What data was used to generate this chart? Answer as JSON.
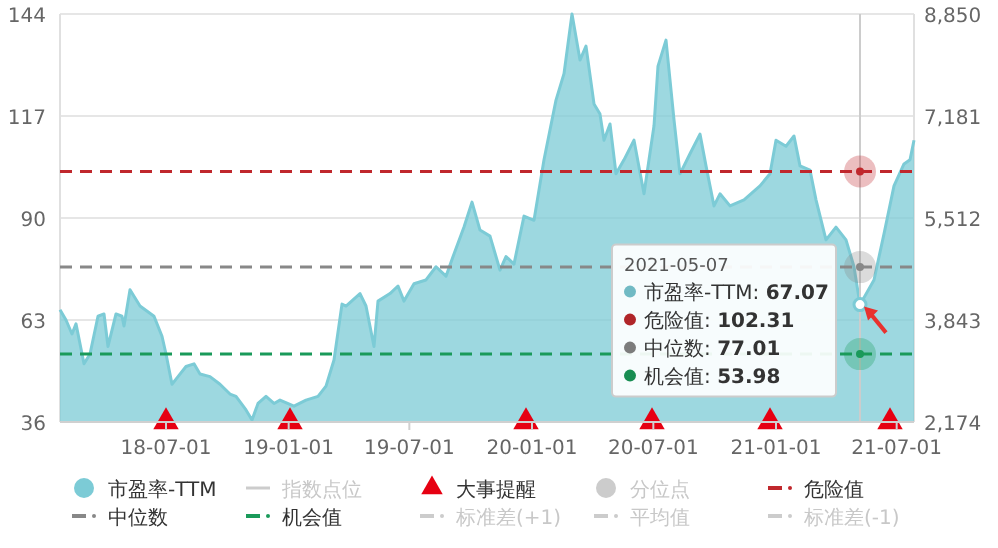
{
  "chart_data": {
    "type": "area",
    "xlim": [
      "2018-01-23",
      "2021-07-27"
    ],
    "xticks": [
      {
        "value": "2018-07-01",
        "label": "18-07-01"
      },
      {
        "value": "2019-01-01",
        "label": "19-01-01"
      },
      {
        "value": "2019-07-01",
        "label": "19-07-01"
      },
      {
        "value": "2020-01-01",
        "label": "20-01-01"
      },
      {
        "value": "2020-07-01",
        "label": "20-07-01"
      },
      {
        "value": "2021-01-01",
        "label": "21-01-01"
      },
      {
        "value": "2021-07-01",
        "label": "21-07-01"
      }
    ],
    "ylim": [
      36,
      144
    ],
    "yticks": [
      36,
      63,
      90,
      117,
      144
    ],
    "y2lim": [
      2174,
      8850
    ],
    "y2ticks": [
      {
        "value": 2174,
        "label": "2,174"
      },
      {
        "value": 3843,
        "label": "3,843"
      },
      {
        "value": 5512,
        "label": "5,512"
      },
      {
        "value": 7181,
        "label": "7,181"
      },
      {
        "value": 8850,
        "label": "8,850"
      }
    ],
    "grid": "y",
    "legend": "bottom",
    "series": [
      {
        "name": "市盈率-TTM",
        "color": "#7ccbd6",
        "x": [
          "2018-01-23",
          "2018-02-01",
          "2018-02-10",
          "2018-02-16",
          "2018-02-28",
          "2018-03-09",
          "2018-03-21",
          "2018-03-30",
          "2018-04-05",
          "2018-04-17",
          "2018-04-26",
          "2018-04-29",
          "2018-05-08",
          "2018-05-23",
          "2018-06-13",
          "2018-06-25",
          "2018-07-01",
          "2018-07-10",
          "2018-07-19",
          "2018-07-31",
          "2018-08-12",
          "2018-08-21",
          "2018-09-05",
          "2018-09-20",
          "2018-10-05",
          "2018-10-14",
          "2018-10-29",
          "2018-11-07",
          "2018-11-16",
          "2018-11-28",
          "2018-12-10",
          "2018-12-19",
          "2019-01-09",
          "2019-01-27",
          "2019-02-14",
          "2019-02-26",
          "2019-03-10",
          "2019-03-22",
          "2019-03-28",
          "2019-04-18",
          "2019-04-27",
          "2019-05-09",
          "2019-05-15",
          "2019-06-02",
          "2019-06-14",
          "2019-06-23",
          "2019-07-08",
          "2019-07-26",
          "2019-08-10",
          "2019-08-25",
          "2019-09-06",
          "2019-09-21",
          "2019-10-03",
          "2019-10-15",
          "2019-10-30",
          "2019-11-14",
          "2019-11-23",
          "2019-12-05",
          "2019-12-20",
          "2020-01-04",
          "2020-01-19",
          "2020-02-06",
          "2020-02-18",
          "2020-03-01",
          "2020-03-13",
          "2020-03-22",
          "2020-04-03",
          "2020-04-12",
          "2020-04-18",
          "2020-04-27",
          "2020-05-06",
          "2020-05-18",
          "2020-06-02",
          "2020-06-17",
          "2020-07-02",
          "2020-07-08",
          "2020-07-20",
          "2020-08-01",
          "2020-08-10",
          "2020-08-25",
          "2020-09-09",
          "2020-09-18",
          "2020-09-30",
          "2020-10-09",
          "2020-10-24",
          "2020-11-14",
          "2020-12-08",
          "2020-12-23",
          "2021-01-01",
          "2021-01-16",
          "2021-01-28",
          "2021-02-06",
          "2021-02-21",
          "2021-03-02",
          "2021-03-17",
          "2021-04-01",
          "2021-04-16",
          "2021-04-28",
          "2021-05-07",
          "2021-05-28",
          "2021-06-12",
          "2021-06-27",
          "2021-07-12",
          "2021-07-21",
          "2021-07-27"
        ],
        "values": [
          65.7,
          63,
          59.3,
          62,
          51.4,
          54,
          64,
          64.6,
          56,
          64.6,
          64,
          61.4,
          71,
          66.7,
          64,
          58.7,
          54,
          46,
          48,
          50.7,
          51.4,
          48.7,
          48,
          46,
          43.4,
          42.8,
          39.2,
          36.5,
          40.9,
          42.8,
          40.9,
          41.8,
          40.2,
          41.8,
          42.8,
          45.5,
          52.4,
          67.2,
          66.7,
          70,
          66.7,
          56,
          68,
          70,
          72,
          68,
          72.6,
          73.6,
          77.1,
          74.6,
          80.5,
          87.6,
          94.2,
          86.8,
          85.2,
          76.2,
          79.8,
          77.8,
          90.5,
          89.4,
          105.4,
          121.2,
          128.2,
          144,
          131.8,
          135.5,
          120.2,
          117.5,
          110.6,
          114.9,
          101.7,
          105.4,
          110.6,
          96.4,
          114.4,
          130.2,
          137.1,
          116,
          101.7,
          107,
          112.2,
          103.8,
          93.2,
          96.4,
          93.2,
          94.8,
          98.5,
          101.7,
          110.6,
          109,
          111.7,
          103.8,
          102.7,
          94.8,
          84.2,
          87.6,
          84.2,
          77.1,
          67.07,
          73.6,
          85.8,
          98.5,
          104.3,
          105.4,
          110.6
        ]
      },
      {
        "name": "指数点位",
        "type": "line",
        "color": "#cccccc"
      },
      {
        "name": "大事提醒",
        "type": "scatter",
        "marker": "triangle",
        "color": "#e60012",
        "x": [
          "2018-07-01",
          "2019-01-03",
          "2019-12-23",
          "2020-06-29",
          "2020-12-23",
          "2021-06-21"
        ],
        "values": [
          36,
          36,
          36,
          36,
          36,
          36
        ]
      },
      {
        "name": "分位点",
        "type": "scatter",
        "marker": "circle",
        "color": "#cccccc"
      },
      {
        "name": "标准差(+1)",
        "type": "line",
        "line_style": "dashed",
        "color": "#cccccc"
      },
      {
        "name": "平均值",
        "type": "line",
        "line_style": "dashed",
        "color": "#cccccc"
      },
      {
        "name": "标准差(-1)",
        "type": "line",
        "line_style": "dashed",
        "color": "#cccccc"
      }
    ],
    "ref_lines": [
      {
        "axis": "y",
        "value": 102.31,
        "label": "危险值",
        "color": "#c0282d",
        "line_style": "dashed"
      },
      {
        "axis": "y",
        "value": 77.01,
        "label": "中位数",
        "color": "#888888",
        "line_style": "dashed"
      },
      {
        "axis": "y",
        "value": 53.98,
        "label": "机会值",
        "color": "#1a9a5a",
        "line_style": "dashed"
      },
      {
        "axis": "x",
        "value": "2021-05-07",
        "color": "#cccccc",
        "line_style": "solid"
      }
    ],
    "annotations": [
      "2021-05-07",
      "市盈率-TTM: 67.07",
      "危险值: 102.31",
      "中位数: 77.01",
      "机会值: 53.98"
    ]
  }
}
